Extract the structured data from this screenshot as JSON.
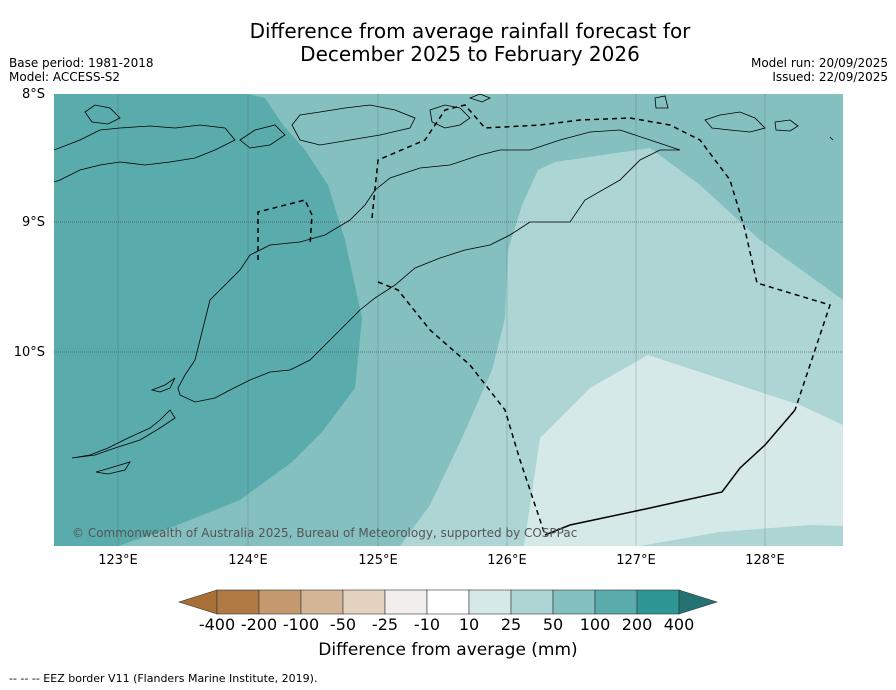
{
  "title_line1": "Difference from average rainfall forecast for",
  "title_line2": "December 2025 to February 2026",
  "base_period": "Base period: 1981-2018",
  "model": "Model: ACCESS-S2",
  "model_run": "Model run: 20/09/2025",
  "issued": "Issued: 22/09/2025",
  "lat_labels": [
    "8°S",
    "9°S",
    "10°S"
  ],
  "lon_labels": [
    "123°E",
    "124°E",
    "125°E",
    "126°E",
    "127°E",
    "128°E"
  ],
  "copyright": "© Commonwealth of Australia 2025, Bureau of Meteorology, supported by COSPPac",
  "colorbar": {
    "ticks": [
      "-400",
      "-200",
      "-100",
      "-50",
      "-25",
      "-10",
      "10",
      "25",
      "50",
      "100",
      "200",
      "400"
    ],
    "label": "Difference from average (mm)",
    "colors": [
      "#a86f37",
      "#b07a45",
      "#c3996d",
      "#d4b596",
      "#e5d3c1",
      "#f1eeeb",
      "#ffffff",
      "#d5e9e8",
      "#acd5d4",
      "#83c0bf",
      "#5aabab",
      "#2e9795",
      "#237372"
    ]
  },
  "footnote": "--  --  -- EEZ border V11 (Flanders Marine Institute, 2019)."
}
